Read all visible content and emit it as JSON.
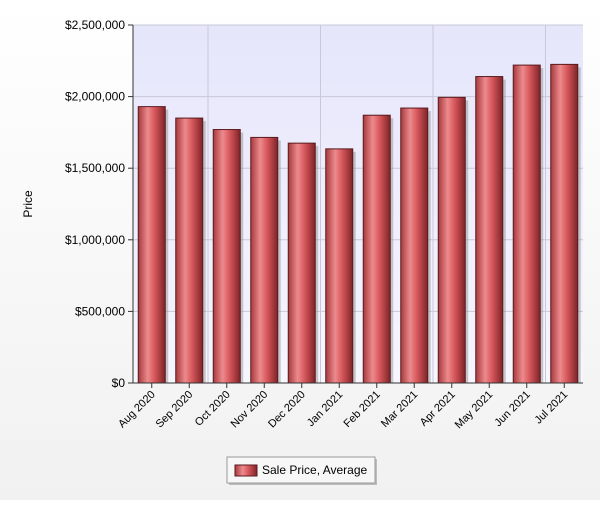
{
  "chart_data": {
    "type": "bar",
    "title": "",
    "xlabel": "",
    "ylabel": "Price",
    "categories": [
      "Aug 2020",
      "Sep 2020",
      "Oct 2020",
      "Nov 2020",
      "Dec 2020",
      "Jan 2021",
      "Feb 2021",
      "Mar 2021",
      "Apr 2021",
      "May 2021",
      "Jun 2021",
      "Jul 2021"
    ],
    "series": [
      {
        "name": "Sale Price, Average",
        "color": "#c9484c",
        "values": [
          1930000,
          1850000,
          1770000,
          1715000,
          1675000,
          1635000,
          1870000,
          1920000,
          1995000,
          2140000,
          2220000,
          2225000
        ]
      }
    ],
    "ylim": [
      0,
      2500000
    ],
    "yticks": [
      0,
      500000,
      1000000,
      1500000,
      2000000,
      2500000
    ],
    "ytick_labels": [
      "$0",
      "$500,000",
      "$1,000,000",
      "$1,500,000",
      "$2,000,000",
      "$2,500,000"
    ],
    "grid": true,
    "legend_position": "bottom-center",
    "plot_background": "#ececff"
  }
}
